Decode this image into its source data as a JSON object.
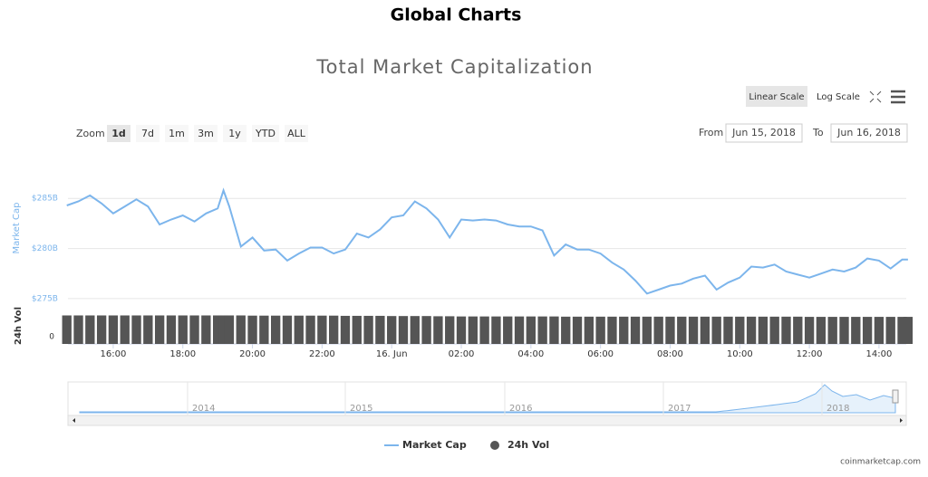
{
  "page_title": "Global Charts",
  "controls": {
    "scales": [
      "Linear Scale",
      "Log Scale"
    ],
    "zoom_label": "Zoom",
    "zoom": [
      "1d",
      "7d",
      "1m",
      "3m",
      "1y",
      "YTD",
      "ALL"
    ],
    "from_label": "From",
    "from": "Jun 15, 2018",
    "to_label": "To",
    "to": "Jun 16, 2018"
  },
  "navigator": {
    "labels": [
      "2014",
      "2015",
      "2016",
      "2017",
      "2018"
    ]
  },
  "credit": "coinmarketcap.com",
  "chart_data": {
    "type": "line",
    "title": "Total Market Capitalization",
    "y_label": "Market Cap",
    "y2_label": "24h Vol",
    "x": [
      "2018-06-15T14:40",
      "2018-06-15T15:00",
      "2018-06-15T15:20",
      "2018-06-15T15:40",
      "2018-06-15T16:00",
      "2018-06-15T16:20",
      "2018-06-15T16:40",
      "2018-06-15T17:00",
      "2018-06-15T17:20",
      "2018-06-15T17:40",
      "2018-06-15T18:00",
      "2018-06-15T18:20",
      "2018-06-15T18:40",
      "2018-06-15T19:00",
      "2018-06-15T19:10",
      "2018-06-15T19:20",
      "2018-06-15T19:40",
      "2018-06-15T20:00",
      "2018-06-15T20:20",
      "2018-06-15T20:40",
      "2018-06-15T21:00",
      "2018-06-15T21:20",
      "2018-06-15T21:40",
      "2018-06-15T22:00",
      "2018-06-15T22:20",
      "2018-06-15T22:40",
      "2018-06-15T23:00",
      "2018-06-15T23:20",
      "2018-06-15T23:40",
      "2018-06-16T00:00",
      "2018-06-16T00:20",
      "2018-06-16T00:40",
      "2018-06-16T01:00",
      "2018-06-16T01:20",
      "2018-06-16T01:40",
      "2018-06-16T02:00",
      "2018-06-16T02:20",
      "2018-06-16T02:40",
      "2018-06-16T03:00",
      "2018-06-16T03:20",
      "2018-06-16T03:40",
      "2018-06-16T04:00",
      "2018-06-16T04:20",
      "2018-06-16T04:40",
      "2018-06-16T05:00",
      "2018-06-16T05:20",
      "2018-06-16T05:40",
      "2018-06-16T06:00",
      "2018-06-16T06:20",
      "2018-06-16T06:40",
      "2018-06-16T07:00",
      "2018-06-16T07:20",
      "2018-06-16T07:40",
      "2018-06-16T08:00",
      "2018-06-16T08:20",
      "2018-06-16T08:40",
      "2018-06-16T09:00",
      "2018-06-16T09:20",
      "2018-06-16T09:40",
      "2018-06-16T10:00",
      "2018-06-16T10:20",
      "2018-06-16T10:40",
      "2018-06-16T11:00",
      "2018-06-16T11:20",
      "2018-06-16T11:40",
      "2018-06-16T12:00",
      "2018-06-16T12:20",
      "2018-06-16T12:40",
      "2018-06-16T13:00",
      "2018-06-16T13:20",
      "2018-06-16T13:40",
      "2018-06-16T14:00",
      "2018-06-16T14:20",
      "2018-06-16T14:40",
      "2018-06-16T14:50"
    ],
    "series": [
      {
        "name": "Market Cap",
        "color": "#7cb5ec",
        "values": [
          284.3,
          284.7,
          285.3,
          284.5,
          283.5,
          284.2,
          284.9,
          284.2,
          282.4,
          282.9,
          283.3,
          282.7,
          283.5,
          284.0,
          285.8,
          284.2,
          280.2,
          281.1,
          279.8,
          279.9,
          278.8,
          279.5,
          280.1,
          280.1,
          279.5,
          279.9,
          281.5,
          281.1,
          281.9,
          283.1,
          283.3,
          284.7,
          284.0,
          282.9,
          281.1,
          282.9,
          282.8,
          282.9,
          282.8,
          282.4,
          282.2,
          282.2,
          281.8,
          279.3,
          280.4,
          279.9,
          279.9,
          279.5,
          278.6,
          277.9,
          276.8,
          275.5,
          275.9,
          276.3,
          276.5,
          277.0,
          277.3,
          275.9,
          276.6,
          277.1,
          278.2,
          278.1,
          278.4,
          277.7,
          277.4,
          277.1,
          277.5,
          277.9,
          277.7,
          278.1,
          279.0,
          278.8,
          278.0,
          278.9,
          278.9
        ]
      },
      {
        "name": "24h Vol",
        "color": "#555555",
        "axis": "y2",
        "values": [
          13.9,
          13.9,
          13.9,
          13.9,
          13.9,
          13.9,
          13.9,
          13.9,
          13.9,
          13.9,
          13.9,
          13.9,
          13.9,
          13.9,
          13.9,
          13.9,
          13.9,
          13.8,
          13.8,
          13.8,
          13.8,
          13.8,
          13.8,
          13.8,
          13.8,
          13.7,
          13.7,
          13.7,
          13.7,
          13.6,
          13.6,
          13.6,
          13.6,
          13.5,
          13.5,
          13.4,
          13.4,
          13.4,
          13.4,
          13.4,
          13.4,
          13.4,
          13.4,
          13.4,
          13.3,
          13.3,
          13.3,
          13.3,
          13.3,
          13.3,
          13.3,
          13.3,
          13.3,
          13.3,
          13.3,
          13.3,
          13.3,
          13.3,
          13.3,
          13.3,
          13.3,
          13.3,
          13.3,
          13.3,
          13.3,
          13.2,
          13.2,
          13.2,
          13.2,
          13.2,
          13.2,
          13.2,
          13.2,
          13.2,
          13.2
        ]
      }
    ],
    "xlim": [
      "2018-06-15T14:42",
      "2018-06-16T14:47"
    ],
    "xticks": [
      {
        "value": "2018-06-15T16:00",
        "label": "16:00"
      },
      {
        "value": "2018-06-15T18:00",
        "label": "18:00"
      },
      {
        "value": "2018-06-15T20:00",
        "label": "20:00"
      },
      {
        "value": "2018-06-15T22:00",
        "label": "22:00"
      },
      {
        "value": "2018-06-16T00:00",
        "label": "16. Jun"
      },
      {
        "value": "2018-06-16T02:00",
        "label": "02:00"
      },
      {
        "value": "2018-06-16T04:00",
        "label": "04:00"
      },
      {
        "value": "2018-06-16T06:00",
        "label": "06:00"
      },
      {
        "value": "2018-06-16T08:00",
        "label": "08:00"
      },
      {
        "value": "2018-06-16T10:00",
        "label": "10:00"
      },
      {
        "value": "2018-06-16T12:00",
        "label": "12:00"
      },
      {
        "value": "2018-06-16T14:00",
        "label": "14:00"
      }
    ],
    "ylim": [
      274,
      288
    ],
    "yticks": [
      {
        "value": 275,
        "label": "$275B"
      },
      {
        "value": 280,
        "label": "$280B"
      },
      {
        "value": 285,
        "label": "$285B"
      }
    ],
    "y2lim": [
      0,
      15
    ],
    "y2ticks": [
      0
    ],
    "grid": true
  }
}
